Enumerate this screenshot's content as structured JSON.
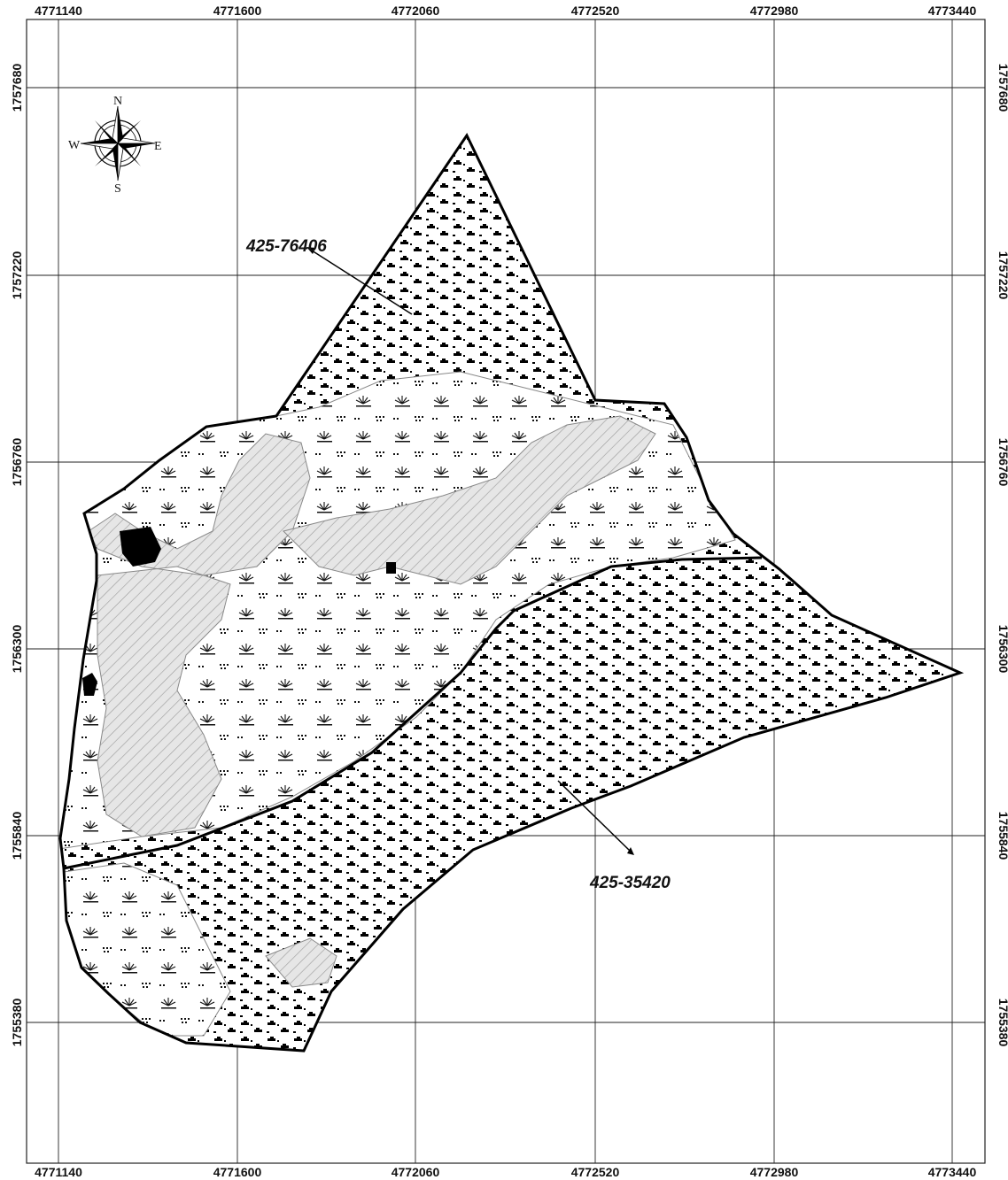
{
  "map": {
    "x_ticks": [
      "4771140",
      "4771600",
      "4772060",
      "4772520",
      "4772980",
      "4773440"
    ],
    "y_ticks": [
      "1757680",
      "1757220",
      "1756760",
      "1756300",
      "1755840",
      "1755380"
    ],
    "compass": {
      "n": "N",
      "s": "S",
      "e": "E",
      "w": "W"
    },
    "parcels": [
      {
        "id": "north",
        "label": "425-76406"
      },
      {
        "id": "south",
        "label": "425-35420"
      }
    ]
  }
}
